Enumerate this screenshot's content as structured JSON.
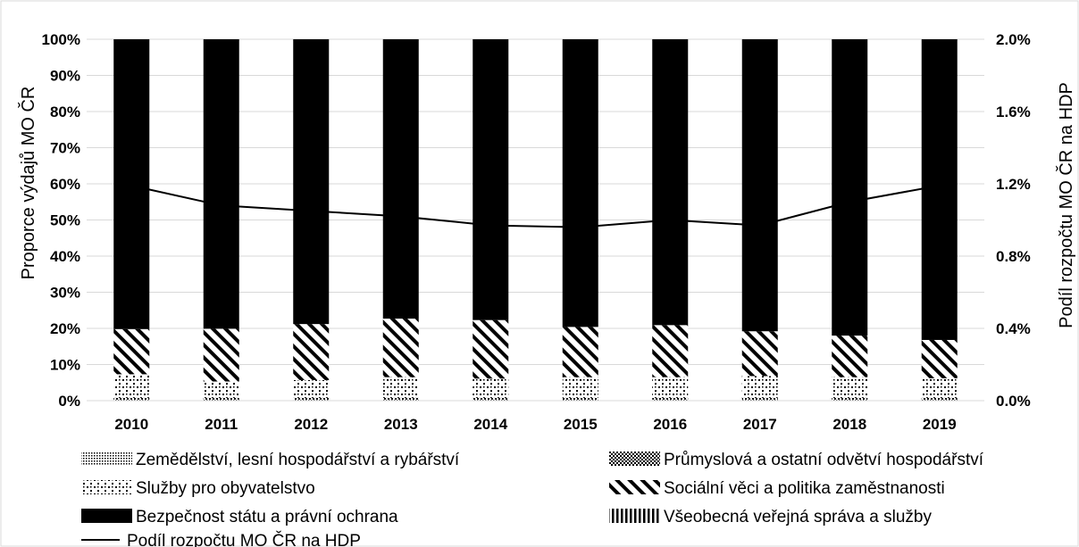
{
  "chart_data": {
    "type": "bar",
    "stacked": true,
    "percent_stacked": true,
    "title": "",
    "xlabel": "",
    "ylabel": "Proporce výdajů MO ČR",
    "y2label": "Podíl rozpočtu MO ČR na HDP",
    "ylim": [
      0,
      100
    ],
    "y2lim": [
      0,
      2.0
    ],
    "y_ticks": [
      "0%",
      "10%",
      "20%",
      "30%",
      "40%",
      "50%",
      "60%",
      "70%",
      "80%",
      "90%",
      "100%"
    ],
    "y2_ticks": [
      "0.0%",
      "0.4%",
      "0.8%",
      "1.2%",
      "1.6%",
      "2.0%"
    ],
    "grid": true,
    "legend_position": "bottom",
    "categories": [
      "2010",
      "2011",
      "2012",
      "2013",
      "2014",
      "2015",
      "2016",
      "2017",
      "2018",
      "2019"
    ],
    "series": [
      {
        "name": "Zemědělství, lesní hospodářství a rybářství",
        "pattern": "dense-dots",
        "values": [
          0.3,
          0.3,
          0.3,
          0.3,
          0.3,
          0.3,
          0.3,
          0.3,
          0.3,
          0.3
        ]
      },
      {
        "name": "Průmyslová a ostatní odvětví hospodářství",
        "pattern": "checker",
        "values": [
          0.5,
          0.5,
          0.5,
          0.5,
          0.5,
          0.5,
          0.5,
          0.5,
          0.5,
          0.5
        ]
      },
      {
        "name": "Služby pro obyvatelstvo",
        "pattern": "sparse-dots",
        "values": [
          6.5,
          4.5,
          4.9,
          5.7,
          5.3,
          5.7,
          5.7,
          6.0,
          5.7,
          5.4
        ]
      },
      {
        "name": "Sociální věci a politika zaměstnanosti",
        "pattern": "diagonal",
        "values": [
          12.5,
          14.6,
          15.5,
          16.2,
          16.2,
          13.9,
          14.4,
          12.4,
          11.5,
          10.6
        ]
      },
      {
        "name": "Bezpečnost státu a právní ochrana",
        "pattern": "solid-black",
        "values": [
          80.2,
          80.1,
          78.8,
          77.3,
          77.7,
          79.6,
          79.1,
          80.8,
          82.0,
          83.2
        ]
      },
      {
        "name": "Všeobecná veřejná správa a služby",
        "pattern": "vertical",
        "values": [
          0,
          0,
          0,
          0,
          0,
          0,
          0,
          0,
          0,
          0
        ]
      }
    ],
    "line_series": {
      "name": "Podíl rozpočtu MO ČR na HDP",
      "axis": "secondary",
      "values": [
        1.19,
        1.08,
        1.05,
        1.02,
        0.97,
        0.96,
        1.0,
        0.97,
        1.1,
        1.19
      ]
    },
    "colors": {
      "bar": "#000000",
      "pattern_bg": "#ffffff",
      "grid": "#d9d9d9",
      "line": "#000000"
    }
  }
}
